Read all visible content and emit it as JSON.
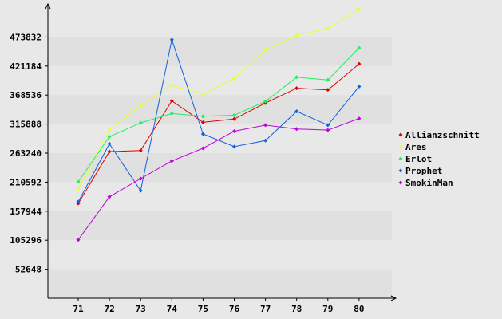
{
  "chart_data": {
    "type": "line",
    "title": "",
    "xlabel": "",
    "ylabel": "",
    "x": [
      "71",
      "72",
      "73",
      "74",
      "75",
      "76",
      "77",
      "78",
      "79",
      "80"
    ],
    "ylim": [
      0,
      526480
    ],
    "yticks": [
      52648,
      105296,
      157944,
      210592,
      263240,
      315888,
      368536,
      421184,
      473832
    ],
    "grid": "horizontal alternating bands",
    "legend_position": "right",
    "series": [
      {
        "name": "Allianzschnitt",
        "color": "#e00000",
        "values": [
          172000,
          266000,
          268000,
          358000,
          319000,
          325000,
          354000,
          381000,
          378000,
          425000
        ]
      },
      {
        "name": "Ares",
        "color": "#e8ff30",
        "values": [
          198000,
          306000,
          349000,
          386000,
          370000,
          399000,
          451000,
          477000,
          489000,
          524000
        ]
      },
      {
        "name": "Erlot",
        "color": "#20f060",
        "values": [
          211000,
          293000,
          318000,
          335000,
          330000,
          332000,
          357000,
          401000,
          396000,
          454000
        ]
      },
      {
        "name": "Prophet",
        "color": "#1060e0",
        "values": [
          175000,
          280000,
          195000,
          469000,
          298000,
          275000,
          286000,
          339000,
          314000,
          384000
        ]
      },
      {
        "name": "SmokinMan",
        "color": "#c000e0",
        "values": [
          106000,
          184000,
          217000,
          249000,
          272000,
          303000,
          314000,
          307000,
          305000,
          326000
        ]
      }
    ]
  }
}
